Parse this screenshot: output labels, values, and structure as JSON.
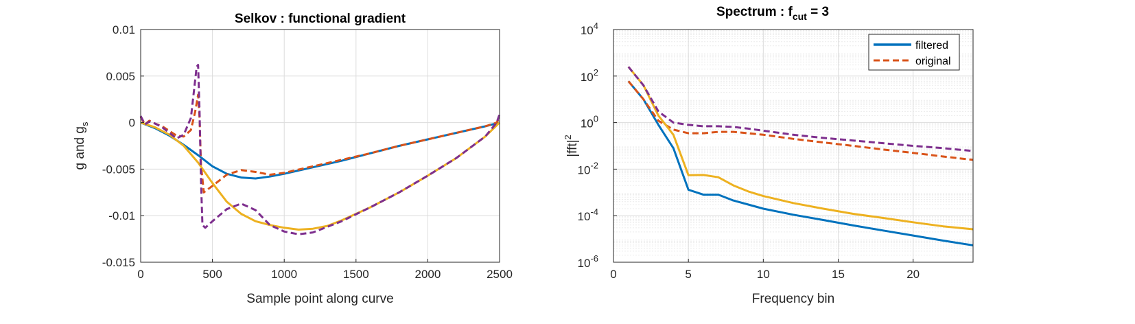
{
  "colors": {
    "blue": "#0072BD",
    "orange": "#D95319",
    "yellow": "#EDB120",
    "purple": "#7E2F8E",
    "grid": "#dcdcdc",
    "minor_grid": "#ececec",
    "axis": "#262626"
  },
  "chart_data": [
    {
      "type": "line",
      "title": "Selkov : functional gradient",
      "xlabel": "Sample point along curve",
      "ylabel_main": "g and g",
      "ylabel_sub": "s",
      "xlim": [
        0,
        2500
      ],
      "ylim": [
        -0.015,
        0.01
      ],
      "xticks": [
        0,
        500,
        1000,
        1500,
        2000,
        2500
      ],
      "xtick_labels": [
        "0",
        "500",
        "1000",
        "1500",
        "2000",
        "2500"
      ],
      "yticks": [
        0.01,
        0.005,
        0,
        -0.005,
        -0.01,
        -0.015
      ],
      "ytick_labels": [
        "0.01",
        "0.005",
        "0",
        "-0.005",
        "-0.01",
        "-0.015"
      ],
      "grid": true,
      "series": [
        {
          "color": "blue",
          "style": "solid",
          "x": [
            0,
            100,
            200,
            300,
            400,
            500,
            600,
            700,
            800,
            900,
            1000,
            1200,
            1400,
            1600,
            1800,
            2000,
            2200,
            2400,
            2500
          ],
          "y": [
            0,
            -0.0006,
            -0.0014,
            -0.0024,
            -0.0035,
            -0.0047,
            -0.0055,
            -0.0059,
            -0.006,
            -0.0058,
            -0.0055,
            -0.0048,
            -0.0041,
            -0.0033,
            -0.0025,
            -0.0018,
            -0.0011,
            -0.0004,
            0
          ]
        },
        {
          "color": "orange",
          "style": "dashed",
          "x": [
            0,
            30,
            60,
            100,
            150,
            200,
            250,
            300,
            350,
            380,
            400,
            410,
            420,
            440,
            500,
            600,
            700,
            800,
            900,
            1000,
            1200,
            1400,
            1600,
            1800,
            2000,
            2200,
            2400,
            2480,
            2500
          ],
          "y": [
            0.0006,
            -0.0002,
            0.0002,
            -0.0001,
            -0.0004,
            -0.0009,
            -0.0014,
            -0.0015,
            -0.0008,
            0.0012,
            0.003,
            0.0005,
            -0.0045,
            -0.0075,
            -0.0068,
            -0.0056,
            -0.0051,
            -0.0053,
            -0.0056,
            -0.0054,
            -0.0047,
            -0.004,
            -0.0033,
            -0.0025,
            -0.0018,
            -0.0011,
            -0.0004,
            0,
            0.0006
          ]
        },
        {
          "color": "yellow",
          "style": "solid",
          "x": [
            0,
            100,
            200,
            300,
            400,
            500,
            600,
            700,
            800,
            900,
            1000,
            1100,
            1200,
            1300,
            1400,
            1600,
            1800,
            2000,
            2200,
            2400,
            2500
          ],
          "y": [
            0,
            -0.0005,
            -0.0013,
            -0.0025,
            -0.0043,
            -0.0065,
            -0.0085,
            -0.0098,
            -0.0106,
            -0.011,
            -0.0113,
            -0.0115,
            -0.0114,
            -0.0111,
            -0.0105,
            -0.0091,
            -0.0075,
            -0.0057,
            -0.0038,
            -0.0015,
            0
          ]
        },
        {
          "color": "purple",
          "style": "dashed",
          "x": [
            0,
            30,
            60,
            100,
            150,
            200,
            250,
            300,
            350,
            390,
            400,
            410,
            420,
            430,
            450,
            500,
            600,
            700,
            800,
            900,
            1000,
            1100,
            1200,
            1400,
            1600,
            1800,
            2000,
            2200,
            2400,
            2480,
            2500
          ],
          "y": [
            0.0007,
            -0.0002,
            0.0001,
            -0.0001,
            -0.0005,
            -0.0011,
            -0.0017,
            -0.0013,
            0.0005,
            0.006,
            0.0062,
            0.0012,
            -0.0062,
            -0.011,
            -0.0113,
            -0.0106,
            -0.0093,
            -0.0087,
            -0.0094,
            -0.011,
            -0.0117,
            -0.012,
            -0.0118,
            -0.0106,
            -0.0091,
            -0.0075,
            -0.0057,
            -0.0038,
            -0.0015,
            0,
            0.0009
          ]
        }
      ]
    },
    {
      "type": "line",
      "title_main": "Spectrum : f",
      "title_sub": "cut",
      "title_tail": " = 3",
      "xlabel": "Frequency bin",
      "ylabel_main": "|fft|",
      "ylabel_sup": "2",
      "xlim": [
        0,
        24
      ],
      "ylim": [
        1e-06,
        10000
      ],
      "yscale": "log",
      "xticks": [
        0,
        5,
        10,
        15,
        20
      ],
      "xtick_labels": [
        "0",
        "5",
        "10",
        "15",
        "20"
      ],
      "ytick_labels": [
        {
          "base": "10",
          "exp": "-6",
          "value": 1e-06
        },
        {
          "base": "10",
          "exp": "-4",
          "value": 0.0001
        },
        {
          "base": "10",
          "exp": "-2",
          "value": 0.01
        },
        {
          "base": "10",
          "exp": "0",
          "value": 1
        },
        {
          "base": "10",
          "exp": "2",
          "value": 100
        },
        {
          "base": "10",
          "exp": "4",
          "value": 10000
        }
      ],
      "grid": true,
      "minor_grid": true,
      "legend": {
        "position": "top-right",
        "entries": [
          {
            "label": "filtered",
            "color": "blue",
            "style": "solid"
          },
          {
            "label": "original",
            "color": "orange",
            "style": "dashed"
          }
        ]
      },
      "series": [
        {
          "name": "filtered",
          "color": "blue",
          "style": "solid",
          "x": [
            1,
            2,
            3,
            4,
            5,
            6,
            7,
            8,
            9,
            10,
            12,
            14,
            16,
            18,
            20,
            22,
            24
          ],
          "y": [
            60,
            10,
            0.8,
            0.08,
            0.0013,
            0.0008,
            0.0008,
            0.00045,
            0.0003,
            0.0002,
            0.00011,
            6.5e-05,
            3.8e-05,
            2.3e-05,
            1.4e-05,
            8.5e-06,
            5.3e-06
          ]
        },
        {
          "name": "original",
          "color": "orange",
          "style": "dashed",
          "x": [
            1,
            2,
            3,
            4,
            5,
            6,
            7,
            8,
            9,
            10,
            12,
            14,
            16,
            18,
            20,
            22,
            24
          ],
          "y": [
            60,
            10,
            1.2,
            0.5,
            0.35,
            0.35,
            0.4,
            0.4,
            0.35,
            0.3,
            0.2,
            0.14,
            0.1,
            0.07,
            0.05,
            0.035,
            0.025
          ]
        },
        {
          "color": "yellow",
          "style": "solid",
          "x": [
            1,
            2,
            3,
            4,
            5,
            6,
            7,
            8,
            9,
            10,
            12,
            14,
            16,
            18,
            20,
            22,
            24
          ],
          "y": [
            250,
            40,
            2,
            0.3,
            0.0055,
            0.0056,
            0.0045,
            0.002,
            0.0011,
            0.0007,
            0.00035,
            0.0002,
            0.00012,
            8e-05,
            5.2e-05,
            3.5e-05,
            2.6e-05
          ]
        },
        {
          "color": "purple",
          "style": "dashed",
          "x": [
            1,
            2,
            3,
            4,
            5,
            6,
            7,
            8,
            9,
            10,
            12,
            14,
            16,
            18,
            20,
            22,
            24
          ],
          "y": [
            250,
            40,
            3,
            1,
            0.8,
            0.7,
            0.7,
            0.65,
            0.55,
            0.45,
            0.3,
            0.22,
            0.17,
            0.13,
            0.1,
            0.08,
            0.06
          ]
        }
      ]
    }
  ]
}
